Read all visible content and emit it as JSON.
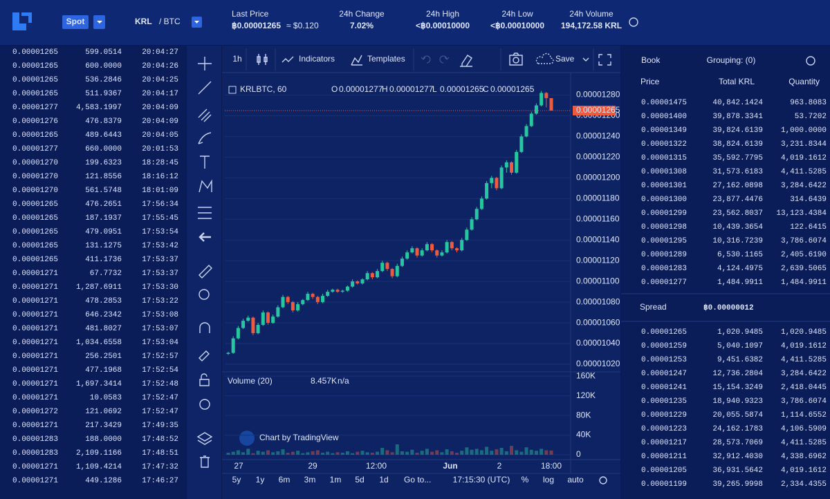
{
  "header": {
    "market": "Spot",
    "pair_base": "KRL",
    "pair_quote": "/ BTC",
    "stats": [
      {
        "label": "Last Price",
        "value": "฿0.00001265",
        "sub": "≈ $0.120"
      },
      {
        "label": "24h Change",
        "value": "7.02%"
      },
      {
        "label": "24h High",
        "value": "<฿0.00010000"
      },
      {
        "label": "24h Low",
        "value": "<฿0.00010000"
      },
      {
        "label": "24h Volume",
        "value": "194,172.58 KRL"
      }
    ]
  },
  "trades": {
    "row_colors": [
      "#f0533a",
      "#f0533a",
      "#f0533a",
      "#f0533a",
      "#2ed3a6",
      "#2ed3a6",
      "#f0533a",
      "#2ed3a6",
      "#f0533a",
      "#f0533a",
      "#f0533a",
      "#f0533a",
      "#f0533a",
      "#f0533a",
      "#f0533a",
      "#f0533a",
      "#f0533a",
      "#f0533a",
      "#f0533a",
      "#f0533a",
      "#f0533a",
      "#f0533a",
      "#f0533a",
      "#f0533a",
      "#f0533a",
      "#f0533a",
      "#f0533a",
      "#f0533a",
      "#2ed3a6",
      "#2ed3a6",
      "#f0533a",
      "#f0533a"
    ],
    "rows": [
      [
        "0.00001265",
        "599.0514",
        "20:04:27"
      ],
      [
        "0.00001265",
        "600.0000",
        "20:04:26"
      ],
      [
        "0.00001265",
        "536.2846",
        "20:04:25"
      ],
      [
        "0.00001265",
        "511.9367",
        "20:04:17"
      ],
      [
        "0.00001277",
        "4,583.1997",
        "20:04:09"
      ],
      [
        "0.00001276",
        "476.8379",
        "20:04:09"
      ],
      [
        "0.00001265",
        "489.6443",
        "20:04:05"
      ],
      [
        "0.00001277",
        "660.0000",
        "20:01:53"
      ],
      [
        "0.00001270",
        "199.6323",
        "18:28:45"
      ],
      [
        "0.00001270",
        "121.8556",
        "18:16:12"
      ],
      [
        "0.00001270",
        "561.5748",
        "18:01:09"
      ],
      [
        "0.00001265",
        "476.2651",
        "17:56:34"
      ],
      [
        "0.00001265",
        "187.1937",
        "17:55:45"
      ],
      [
        "0.00001265",
        "479.0951",
        "17:53:54"
      ],
      [
        "0.00001265",
        "131.1275",
        "17:53:42"
      ],
      [
        "0.00001265",
        "411.1736",
        "17:53:37"
      ],
      [
        "0.00001271",
        "67.7732",
        "17:53:37"
      ],
      [
        "0.00001271",
        "1,287.6911",
        "17:53:30"
      ],
      [
        "0.00001271",
        "478.2853",
        "17:53:22"
      ],
      [
        "0.00001271",
        "646.2342",
        "17:53:08"
      ],
      [
        "0.00001271",
        "481.8027",
        "17:53:07"
      ],
      [
        "0.00001271",
        "1,034.6558",
        "17:53:04"
      ],
      [
        "0.00001271",
        "256.2501",
        "17:52:57"
      ],
      [
        "0.00001271",
        "477.1968",
        "17:52:54"
      ],
      [
        "0.00001271",
        "1,697.3414",
        "17:52:48"
      ],
      [
        "0.00001271",
        "10.0583",
        "17:52:47"
      ],
      [
        "0.00001272",
        "121.0692",
        "17:52:47"
      ],
      [
        "0.00001271",
        "217.3429",
        "17:49:35"
      ],
      [
        "0.00001283",
        "188.0000",
        "17:48:52"
      ],
      [
        "0.00001283",
        "2,109.1166",
        "17:48:51"
      ],
      [
        "0.00001271",
        "1,109.4214",
        "17:47:32"
      ],
      [
        "0.00001271",
        "449.1286",
        "17:46:27"
      ]
    ]
  },
  "toolbar": {
    "interval": "1h",
    "indicators": "Indicators",
    "templates": "Templates",
    "save": "Save"
  },
  "chart_data": {
    "type": "candlestick",
    "symbol": "KRLBTC, 60",
    "legend": [
      [
        "O",
        "0.00001277"
      ],
      [
        "H",
        "0.00001277"
      ],
      [
        "L",
        "0.00001265"
      ],
      [
        "C",
        "0.00001265"
      ]
    ],
    "up_color": "#26c6a0",
    "down_color": "#ef5a3c",
    "candles": [
      [
        1.03e-05,
        1.032e-05,
        1.029e-05,
        1.031e-05
      ],
      [
        1.031e-05,
        1.047e-05,
        1.03e-05,
        1.045e-05
      ],
      [
        1.045e-05,
        1.057e-05,
        1.044e-05,
        1.055e-05
      ],
      [
        1.055e-05,
        1.064e-05,
        1.054e-05,
        1.062e-05
      ],
      [
        1.062e-05,
        1.067e-05,
        1.061e-05,
        1.065e-05
      ],
      [
        1.065e-05,
        1.066e-05,
        1.048e-05,
        1.05e-05
      ],
      [
        1.05e-05,
        1.06e-05,
        1.049e-05,
        1.058e-05
      ],
      [
        1.058e-05,
        1.072e-05,
        1.057e-05,
        1.07e-05
      ],
      [
        1.07e-05,
        1.071e-05,
        1.058e-05,
        1.06e-05
      ],
      [
        1.06e-05,
        1.068e-05,
        1.059e-05,
        1.066e-05
      ],
      [
        1.066e-05,
        1.077e-05,
        1.065e-05,
        1.075e-05
      ],
      [
        1.075e-05,
        1.087e-05,
        1.074e-05,
        1.085e-05
      ],
      [
        1.085e-05,
        1.086e-05,
        1.078e-05,
        1.08e-05
      ],
      [
        1.08e-05,
        1.081e-05,
        1.07e-05,
        1.072e-05
      ],
      [
        1.072e-05,
        1.08e-05,
        1.071e-05,
        1.078e-05
      ],
      [
        1.078e-05,
        1.083e-05,
        1.077e-05,
        1.082e-05
      ],
      [
        1.082e-05,
        1.09e-05,
        1.081e-05,
        1.088e-05
      ],
      [
        1.088e-05,
        1.089e-05,
        1.083e-05,
        1.085e-05
      ],
      [
        1.085e-05,
        1.086e-05,
        1.078e-05,
        1.08e-05
      ],
      [
        1.08e-05,
        1.088e-05,
        1.079e-05,
        1.086e-05
      ],
      [
        1.086e-05,
        1.092e-05,
        1.085e-05,
        1.09e-05
      ],
      [
        1.09e-05,
        1.093e-05,
        1.089e-05,
        1.092e-05
      ],
      [
        1.092e-05,
        1.093e-05,
        1.089e-05,
        1.09e-05
      ],
      [
        1.09e-05,
        1.092e-05,
        1.089e-05,
        1.091e-05
      ],
      [
        1.091e-05,
        1.096e-05,
        1.09e-05,
        1.095e-05
      ],
      [
        1.095e-05,
        1.102e-05,
        1.094e-05,
        1.1e-05
      ],
      [
        1.1e-05,
        1.101e-05,
        1.097e-05,
        1.098e-05
      ],
      [
        1.098e-05,
        1.103e-05,
        1.097e-05,
        1.102e-05
      ],
      [
        1.102e-05,
        1.11e-05,
        1.101e-05,
        1.108e-05
      ],
      [
        1.108e-05,
        1.109e-05,
        1.102e-05,
        1.104e-05
      ],
      [
        1.104e-05,
        1.112e-05,
        1.103e-05,
        1.11e-05
      ],
      [
        1.11e-05,
        1.12e-05,
        1.109e-05,
        1.118e-05
      ],
      [
        1.118e-05,
        1.119e-05,
        1.11e-05,
        1.112e-05
      ],
      [
        1.112e-05,
        1.113e-05,
        1.103e-05,
        1.105e-05
      ],
      [
        1.105e-05,
        1.117e-05,
        1.104e-05,
        1.115e-05
      ],
      [
        1.115e-05,
        1.124e-05,
        1.114e-05,
        1.122e-05
      ],
      [
        1.122e-05,
        1.13e-05,
        1.121e-05,
        1.128e-05
      ],
      [
        1.128e-05,
        1.134e-05,
        1.127e-05,
        1.132e-05
      ],
      [
        1.132e-05,
        1.133e-05,
        1.123e-05,
        1.125e-05
      ],
      [
        1.125e-05,
        1.132e-05,
        1.124e-05,
        1.13e-05
      ],
      [
        1.13e-05,
        1.138e-05,
        1.129e-05,
        1.136e-05
      ],
      [
        1.136e-05,
        1.137e-05,
        1.128e-05,
        1.13e-05
      ],
      [
        1.13e-05,
        1.131e-05,
        1.123e-05,
        1.125e-05
      ],
      [
        1.125e-05,
        1.13e-05,
        1.124e-05,
        1.128e-05
      ],
      [
        1.128e-05,
        1.14e-05,
        1.127e-05,
        1.138e-05
      ],
      [
        1.138e-05,
        1.139e-05,
        1.13e-05,
        1.132e-05
      ],
      [
        1.132e-05,
        1.133e-05,
        1.128e-05,
        1.13e-05
      ],
      [
        1.13e-05,
        1.142e-05,
        1.129e-05,
        1.14e-05
      ],
      [
        1.14e-05,
        1.152e-05,
        1.139e-05,
        1.15e-05
      ],
      [
        1.15e-05,
        1.162e-05,
        1.149e-05,
        1.16e-05
      ],
      [
        1.16e-05,
        1.172e-05,
        1.159e-05,
        1.17e-05
      ],
      [
        1.17e-05,
        1.182e-05,
        1.169e-05,
        1.18e-05
      ],
      [
        1.18e-05,
        1.197e-05,
        1.179e-05,
        1.195e-05
      ],
      [
        1.195e-05,
        1.202e-05,
        1.19e-05,
        1.2e-05
      ],
      [
        1.2e-05,
        1.201e-05,
        1.188e-05,
        1.19e-05
      ],
      [
        1.19e-05,
        1.212e-05,
        1.189e-05,
        1.21e-05
      ],
      [
        1.21e-05,
        1.217e-05,
        1.205e-05,
        1.215e-05
      ],
      [
        1.215e-05,
        1.216e-05,
        1.203e-05,
        1.205e-05
      ],
      [
        1.205e-05,
        1.227e-05,
        1.204e-05,
        1.225e-05
      ],
      [
        1.225e-05,
        1.242e-05,
        1.224e-05,
        1.24e-05
      ],
      [
        1.24e-05,
        1.252e-05,
        1.239e-05,
        1.25e-05
      ],
      [
        1.25e-05,
        1.264e-05,
        1.249e-05,
        1.262e-05
      ],
      [
        1.262e-05,
        1.272e-05,
        1.261e-05,
        1.27e-05
      ],
      [
        1.27e-05,
        1.284e-05,
        1.269e-05,
        1.282e-05
      ],
      [
        1.282e-05,
        1.283e-05,
        1.268e-05,
        1.277e-05
      ],
      [
        1.277e-05,
        1.277e-05,
        1.265e-05,
        1.265e-05
      ]
    ],
    "ylim": [
      1.014e-05,
      1.289e-05
    ],
    "yticks": [
      {
        "value": 1.02e-05,
        "label": "0.00001020"
      },
      {
        "value": 1.04e-05,
        "label": "0.00001040"
      },
      {
        "value": 1.06e-05,
        "label": "0.00001060"
      },
      {
        "value": 1.08e-05,
        "label": "0.00001080"
      },
      {
        "value": 1.1e-05,
        "label": "0.00001100"
      },
      {
        "value": 1.12e-05,
        "label": "0.00001120"
      },
      {
        "value": 1.14e-05,
        "label": "0.00001140"
      },
      {
        "value": 1.16e-05,
        "label": "0.00001160"
      },
      {
        "value": 1.18e-05,
        "label": "0.00001180"
      },
      {
        "value": 1.2e-05,
        "label": "0.00001200"
      },
      {
        "value": 1.22e-05,
        "label": "0.00001220"
      },
      {
        "value": 1.24e-05,
        "label": "0.00001240"
      },
      {
        "value": 1.26e-05,
        "label": "0.00001260"
      },
      {
        "value": 1.28e-05,
        "label": "0.00001280"
      }
    ],
    "last_price": {
      "value": 1.265e-05,
      "label": "0.00001265"
    },
    "grid": true,
    "volume": {
      "title": "Volume (20)",
      "value": "8.457K",
      "ma": "n/a",
      "values": [
        4000,
        6000,
        9000,
        5000,
        12000,
        3000,
        8000,
        6000,
        9000,
        5000,
        7000,
        11000,
        4000,
        6000,
        8000,
        3000,
        5000,
        7000,
        9000,
        4000,
        6000,
        3000,
        5000,
        4000,
        7000,
        3000,
        6000,
        8000,
        5000,
        4000,
        6000,
        14000,
        9000,
        5000,
        21000,
        7000,
        6000,
        10000,
        4000,
        8000,
        12000,
        6000,
        9000,
        5000,
        11000,
        7000,
        4000,
        8000,
        15000,
        10000,
        12000,
        9000,
        16000,
        8000,
        11000,
        14000,
        7000,
        18000,
        9000,
        6000,
        15000,
        10000,
        8000,
        12000,
        9000,
        8457
      ],
      "ylim": [
        -10000,
        166000
      ],
      "yticks": [
        0,
        {
          "value": 40000,
          "label": "40K"
        },
        {
          "value": 80000,
          "label": "80K"
        },
        {
          "value": 120000,
          "label": "120K"
        },
        {
          "value": 160000,
          "label": "160K"
        }
      ]
    },
    "xticks": [
      "27",
      "29",
      "12:00",
      "Jun",
      "2",
      "18:00"
    ],
    "watermark": "Chart by TradingView"
  },
  "chart_footer": {
    "ranges": [
      "5y",
      "1y",
      "6m",
      "3m",
      "1m",
      "5d",
      "1d"
    ],
    "goto": "Go to...",
    "time": "17:15:30 (UTC)",
    "percent": "%",
    "log": "log",
    "auto": "auto"
  },
  "book": {
    "title": "Book",
    "grouping": "Grouping: (0)",
    "columns": [
      "Price",
      "Total KRL",
      "Quantity"
    ],
    "ask_color": "#f0533a",
    "bid_color": "#2ed3a6",
    "asks": [
      [
        "0.00001475",
        "40,842.1424",
        "963.8083"
      ],
      [
        "0.00001400",
        "39,878.3341",
        "53.7202"
      ],
      [
        "0.00001349",
        "39,824.6139",
        "1,000.0000"
      ],
      [
        "0.00001322",
        "38,824.6139",
        "3,231.8344"
      ],
      [
        "0.00001315",
        "35,592.7795",
        "4,019.1612"
      ],
      [
        "0.00001308",
        "31,573.6183",
        "4,411.5285"
      ],
      [
        "0.00001301",
        "27,162.0898",
        "3,284.6422"
      ],
      [
        "0.00001300",
        "23,877.4476",
        "314.6439"
      ],
      [
        "0.00001299",
        "23,562.8037",
        "13,123.4384"
      ],
      [
        "0.00001298",
        "10,439.3654",
        "122.6415"
      ],
      [
        "0.00001295",
        "10,316.7239",
        "3,786.6074"
      ],
      [
        "0.00001289",
        "6,530.1165",
        "2,405.6190"
      ],
      [
        "0.00001283",
        "4,124.4975",
        "2,639.5065"
      ],
      [
        "0.00001277",
        "1,484.9911",
        "1,484.9911"
      ]
    ],
    "spread_label": "Spread",
    "spread": "฿0.00000012",
    "bids": [
      [
        "0.00001265",
        "1,020.9485",
        "1,020.9485"
      ],
      [
        "0.00001259",
        "5,040.1097",
        "4,019.1612"
      ],
      [
        "0.00001253",
        "9,451.6382",
        "4,411.5285"
      ],
      [
        "0.00001247",
        "12,736.2804",
        "3,284.6422"
      ],
      [
        "0.00001241",
        "15,154.3249",
        "2,418.0445"
      ],
      [
        "0.00001235",
        "18,940.9323",
        "3,786.6074"
      ],
      [
        "0.00001229",
        "20,055.5874",
        "1,114.6552"
      ],
      [
        "0.00001223",
        "24,162.1783",
        "4,106.5909"
      ],
      [
        "0.00001217",
        "28,573.7069",
        "4,411.5285"
      ],
      [
        "0.00001211",
        "32,912.4030",
        "4,338.6962"
      ],
      [
        "0.00001205",
        "36,931.5642",
        "4,019.1612"
      ],
      [
        "0.00001199",
        "39,265.9998",
        "2,334.4355"
      ]
    ]
  }
}
